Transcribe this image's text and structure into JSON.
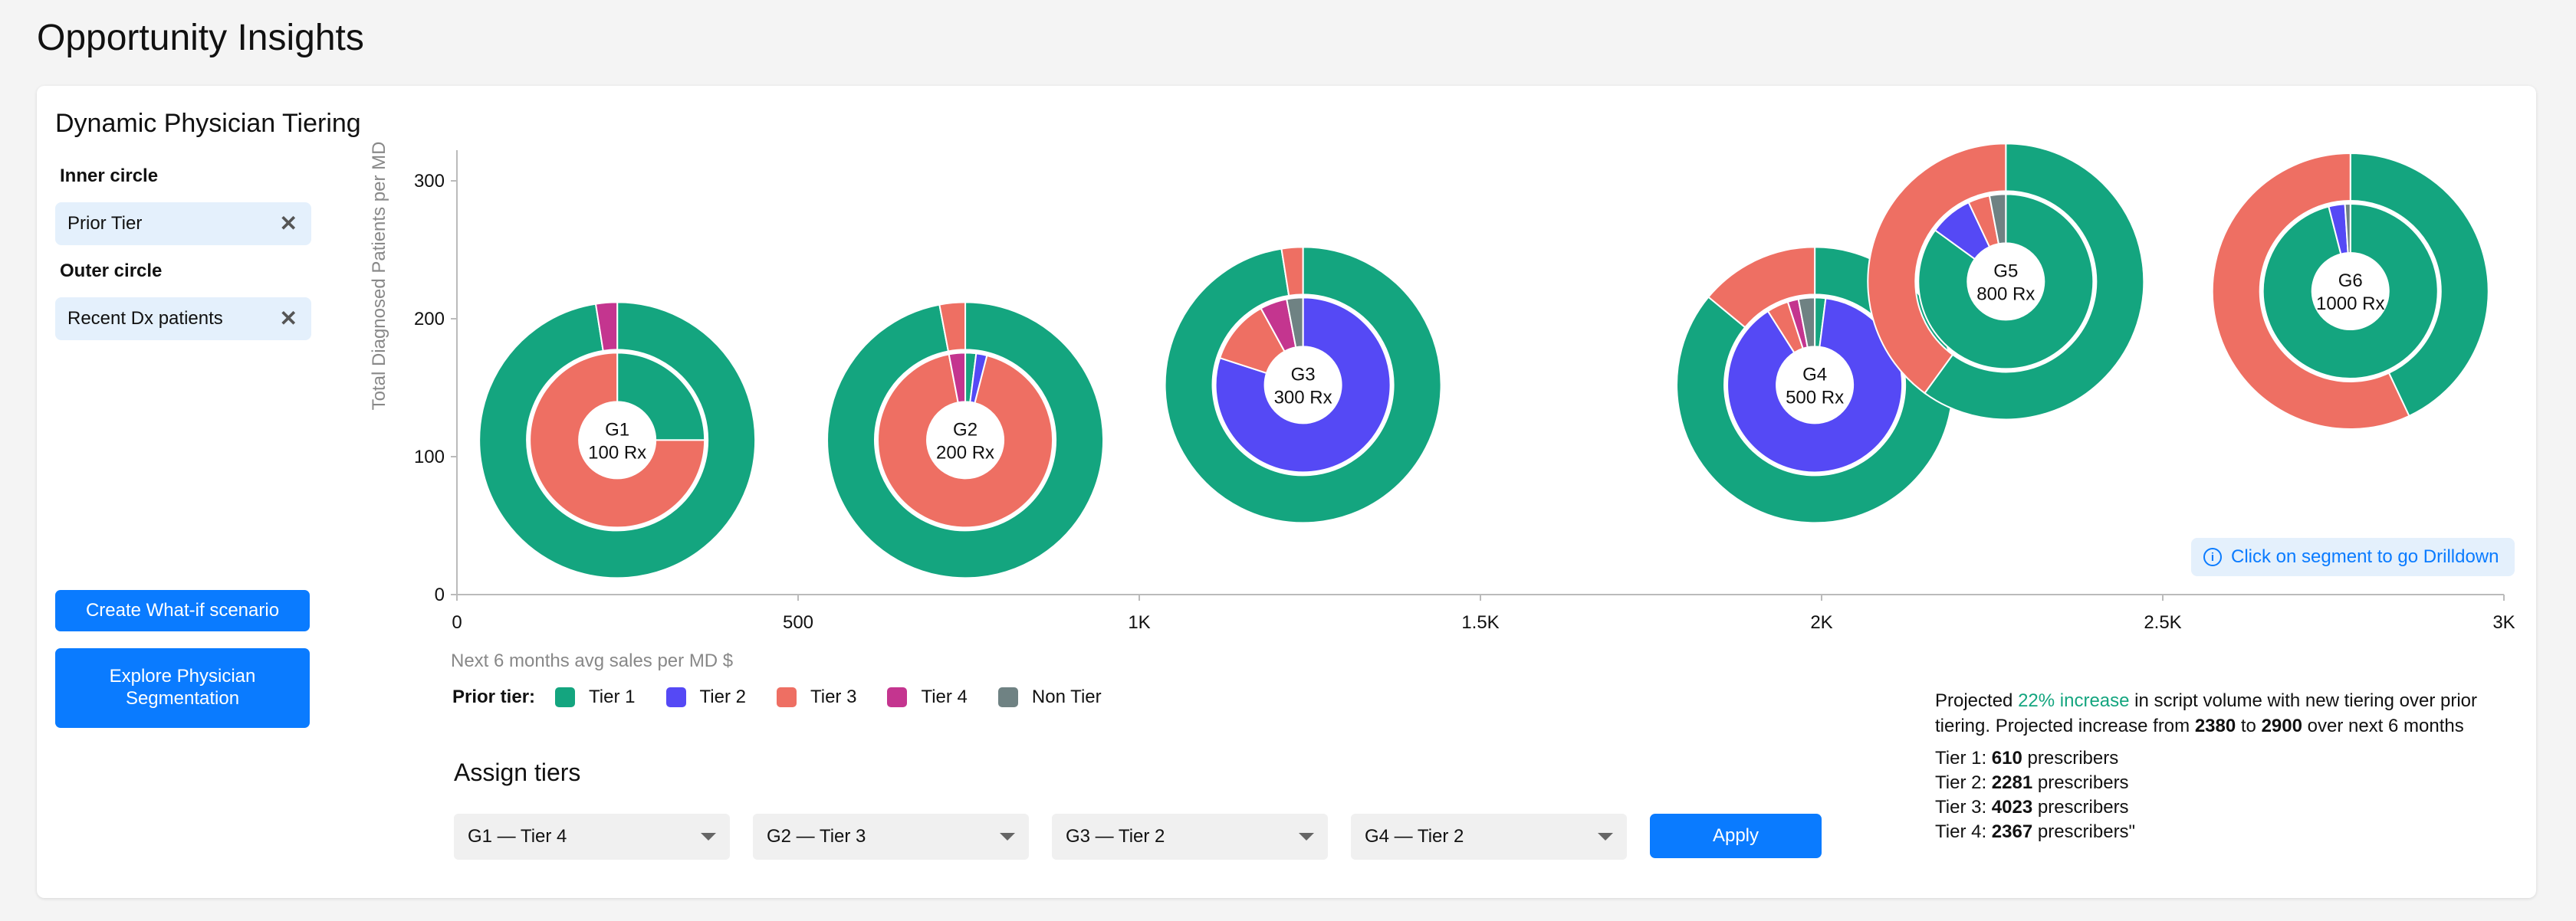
{
  "page": {
    "title": "Opportunity Insights"
  },
  "card": {
    "title": "Dynamic Physician Tiering"
  },
  "filters": {
    "inner_label": "Inner circle",
    "inner_value": "Prior Tier",
    "outer_label": "Outer circle",
    "outer_value": "Recent Dx patients"
  },
  "buttons": {
    "create_whatif": "Create What-if scenario",
    "explore_segmentation": "Explore Physician Segmentation",
    "apply": "Apply"
  },
  "hint": {
    "text": "Click on segment to go Drilldown",
    "icon": "info-icon"
  },
  "legend": {
    "title": "Prior tier:",
    "items": [
      {
        "label": "Tier 1",
        "color": "#14a57f"
      },
      {
        "label": "Tier 2",
        "color": "#5549f5"
      },
      {
        "label": "Tier 3",
        "color": "#ee6f63"
      },
      {
        "label": "Tier 4",
        "color": "#c4358f"
      },
      {
        "label": "Non Tier",
        "color": "#6f8283"
      }
    ]
  },
  "assign": {
    "title": "Assign tiers",
    "selects": [
      "G1 — Tier 4",
      "G2 — Tier 3",
      "G3 — Tier 2",
      "G4 — Tier 2"
    ]
  },
  "projection": {
    "pre": "Projected ",
    "highlight": "22% increase",
    "mid": " in script volume with new tiering over prior tiering. Projected increase from ",
    "from": "2380",
    "to_word": " to ",
    "to": "2900",
    "post": " over next 6 months"
  },
  "tier_counts": [
    {
      "label": "Tier 1: ",
      "value": "610",
      "suffix": " prescribers"
    },
    {
      "label": "Tier 2: ",
      "value": "2281",
      "suffix": " prescribers"
    },
    {
      "label": "Tier 3: ",
      "value": "4023",
      "suffix": " prescribers"
    },
    {
      "label": "Tier 4: ",
      "value": "2367",
      "suffix": " prescribers\""
    }
  ],
  "chart_data": {
    "type": "scatter",
    "subtype": "nested-donut bubbles",
    "xlabel": "Next 6 months avg sales per MD $",
    "ylabel": "Total Diagnosed Patients per MD",
    "xlim": [
      0,
      3000
    ],
    "ylim": [
      0,
      320
    ],
    "x_ticks": [
      0,
      500,
      1000,
      1500,
      2000,
      2500,
      3000
    ],
    "x_tick_labels": [
      "0",
      "500",
      "1K",
      "1.5K",
      "2K",
      "2.5K",
      "3K"
    ],
    "y_ticks": [
      0,
      100,
      200,
      300
    ],
    "y_tick_labels": [
      "0",
      "100",
      "200",
      "300"
    ],
    "groups": [
      {
        "name": "G1",
        "rx": "100 Rx",
        "x": 235,
        "y": 112,
        "inner": [
          0.25,
          0,
          0.75,
          0,
          0
        ],
        "outer": [
          0.975,
          0,
          0,
          0.025,
          0
        ]
      },
      {
        "name": "G2",
        "rx": "200 Rx",
        "x": 745,
        "y": 112,
        "inner": [
          0.02,
          0.02,
          0.93,
          0.03,
          0
        ],
        "outer": [
          0.97,
          0,
          0.03,
          0,
          0
        ]
      },
      {
        "name": "G3",
        "rx": "300 Rx",
        "x": 1240,
        "y": 152,
        "inner": [
          0,
          0.8,
          0.12,
          0.05,
          0.03
        ],
        "outer": [
          0.975,
          0,
          0.025,
          0,
          0
        ]
      },
      {
        "name": "G4",
        "rx": "500 Rx",
        "x": 1990,
        "y": 152,
        "inner": [
          0.02,
          0.89,
          0.04,
          0.02,
          0.03
        ],
        "outer": [
          0.86,
          0,
          0.14,
          0,
          0
        ]
      },
      {
        "name": "G5",
        "rx": "800 Rx",
        "x": 2270,
        "y": 227,
        "inner": [
          0.85,
          0.08,
          0.04,
          0,
          0.03
        ],
        "outer": [
          0.6,
          0,
          0.4,
          0,
          0
        ]
      },
      {
        "name": "G6",
        "rx": "1000 Rx",
        "x": 2775,
        "y": 220,
        "inner": [
          0.96,
          0.03,
          0,
          0,
          0.01
        ],
        "outer": [
          0.43,
          0,
          0.57,
          0,
          0
        ]
      }
    ]
  }
}
